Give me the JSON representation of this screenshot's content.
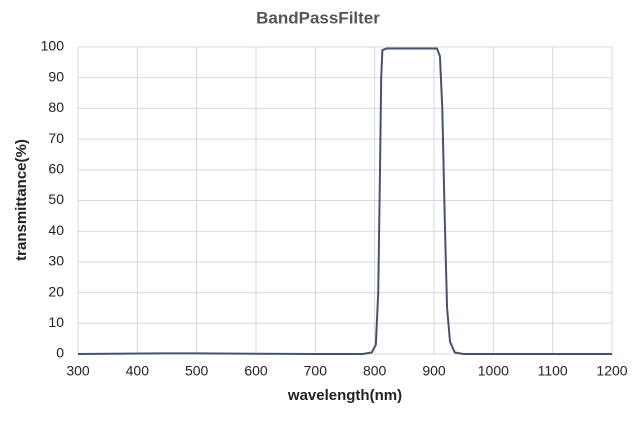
{
  "chart_data": {
    "type": "line",
    "title": "BandPassFilter",
    "x_label": "wavelength(nm)",
    "y_label": "transmittance(%)",
    "x": [
      300,
      440,
      500,
      600,
      700,
      780,
      795,
      802,
      806,
      809,
      811,
      813,
      820,
      905,
      910,
      914,
      918,
      922,
      927,
      935,
      950,
      1200
    ],
    "series": [
      {
        "name": "transmittance",
        "color": "#44546a",
        "values": [
          0,
          0.2,
          0.2,
          0.1,
          0,
          0,
          0.5,
          3,
          20,
          60,
          90,
          99,
          99.5,
          99.5,
          97,
          80,
          45,
          15,
          4,
          0.5,
          0,
          0
        ]
      }
    ],
    "xlim": [
      300,
      1200
    ],
    "xticks": [
      300,
      400,
      500,
      600,
      700,
      800,
      900,
      1000,
      1100,
      1200
    ],
    "ylim": [
      0,
      100
    ],
    "yticks": [
      0,
      10,
      20,
      30,
      40,
      50,
      60,
      70,
      80,
      90,
      100
    ],
    "grid": true
  }
}
